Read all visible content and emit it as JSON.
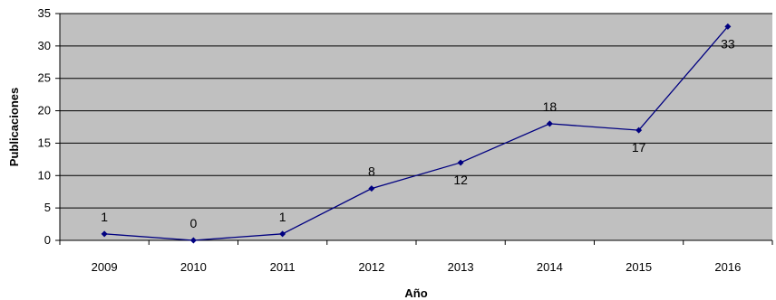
{
  "chart_data": {
    "type": "line",
    "title": "",
    "xlabel": "Año",
    "ylabel": "Publicaciones",
    "categories": [
      "2009",
      "2010",
      "2011",
      "2012",
      "2013",
      "2014",
      "2015",
      "2016"
    ],
    "series": [
      {
        "values": [
          1,
          0,
          1,
          8,
          12,
          18,
          17,
          33
        ]
      }
    ],
    "ylim": [
      0,
      35
    ],
    "yticks": [
      0,
      5,
      10,
      15,
      20,
      25,
      30,
      35
    ],
    "data_labels": [
      "1",
      "0",
      "1",
      "8",
      "12",
      "18",
      "17",
      "33"
    ],
    "grid": "horizontal",
    "legend": "none",
    "colors": {
      "plot_background": "#c0c0c0",
      "gridline": "#000000",
      "series_line": "#000080",
      "page_background": "#ffffff"
    }
  }
}
